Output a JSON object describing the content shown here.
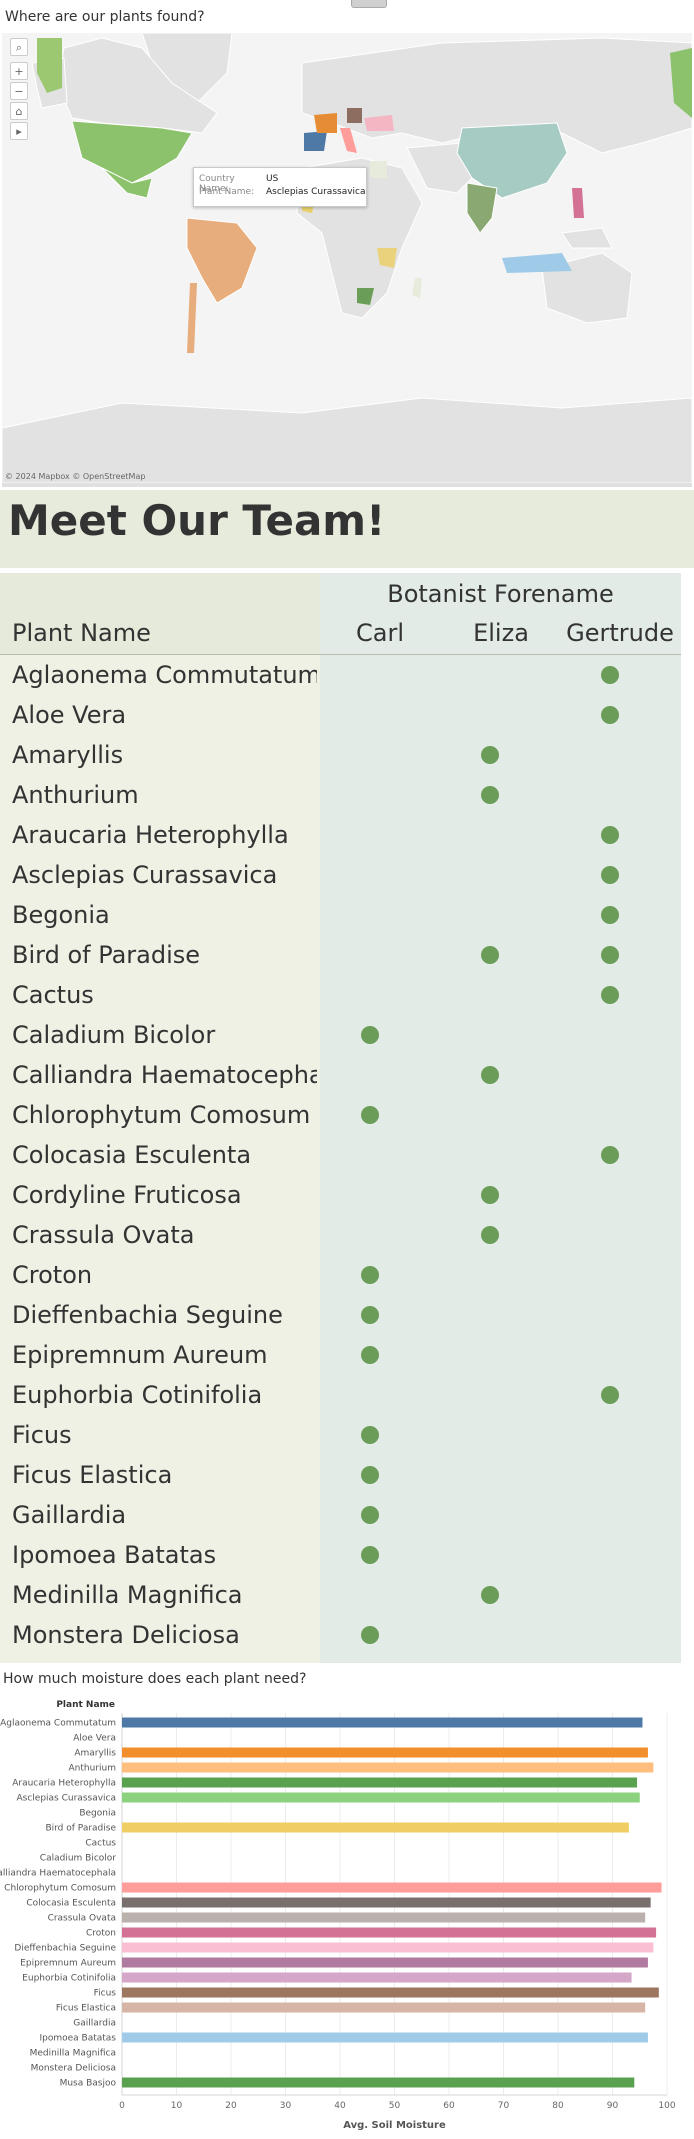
{
  "map_section": {
    "title": "Where are our plants found?",
    "credit": "© 2024 Mapbox  © OpenStreetMap",
    "tooltip": {
      "country_key": "Country Name:",
      "country_value": "US",
      "plant_key": "Plant Name:",
      "plant_value": "Asclepias Curassavica"
    },
    "tools": [
      "search-icon",
      "zoom-in-icon",
      "zoom-out-icon",
      "home-icon",
      "expand-icon"
    ],
    "tool_glyphs": {
      "search": "⌕",
      "zoom_in": "+",
      "zoom_out": "−",
      "home": "⌂",
      "expand": "▸"
    }
  },
  "team": {
    "title": "Meet Our Team!",
    "header": "Botanist Forename",
    "row_header": "Plant Name",
    "columns": [
      "Carl",
      "Eliza",
      "Gertrude"
    ],
    "rows": [
      {
        "name": "Aglaonema Commutatum",
        "marks": [
          false,
          false,
          true
        ]
      },
      {
        "name": "Aloe Vera",
        "marks": [
          false,
          false,
          true
        ]
      },
      {
        "name": "Amaryllis",
        "marks": [
          false,
          true,
          false
        ]
      },
      {
        "name": "Anthurium",
        "marks": [
          false,
          true,
          false
        ]
      },
      {
        "name": "Araucaria Heterophylla",
        "marks": [
          false,
          false,
          true
        ]
      },
      {
        "name": "Asclepias Curassavica",
        "marks": [
          false,
          false,
          true
        ]
      },
      {
        "name": "Begonia",
        "marks": [
          false,
          false,
          true
        ]
      },
      {
        "name": "Bird of Paradise",
        "marks": [
          false,
          true,
          true
        ]
      },
      {
        "name": "Cactus",
        "marks": [
          false,
          false,
          true
        ]
      },
      {
        "name": "Caladium Bicolor",
        "marks": [
          true,
          false,
          false
        ]
      },
      {
        "name": "Calliandra Haematocepha..",
        "marks": [
          false,
          true,
          false
        ]
      },
      {
        "name": "Chlorophytum Comosum",
        "marks": [
          true,
          false,
          false
        ]
      },
      {
        "name": "Colocasia Esculenta",
        "marks": [
          false,
          false,
          true
        ]
      },
      {
        "name": "Cordyline Fruticosa",
        "marks": [
          false,
          true,
          false
        ]
      },
      {
        "name": "Crassula Ovata",
        "marks": [
          false,
          true,
          false
        ]
      },
      {
        "name": "Croton",
        "marks": [
          true,
          false,
          false
        ]
      },
      {
        "name": "Dieffenbachia Seguine",
        "marks": [
          true,
          false,
          false
        ]
      },
      {
        "name": "Epipremnum Aureum",
        "marks": [
          true,
          false,
          false
        ]
      },
      {
        "name": "Euphorbia Cotinifolia",
        "marks": [
          false,
          false,
          true
        ]
      },
      {
        "name": "Ficus",
        "marks": [
          true,
          false,
          false
        ]
      },
      {
        "name": "Ficus Elastica",
        "marks": [
          true,
          false,
          false
        ]
      },
      {
        "name": "Gaillardia",
        "marks": [
          true,
          false,
          false
        ]
      },
      {
        "name": "Ipomoea Batatas",
        "marks": [
          true,
          false,
          false
        ]
      },
      {
        "name": "Medinilla Magnifica",
        "marks": [
          false,
          true,
          false
        ]
      },
      {
        "name": "Monstera Deliciosa",
        "marks": [
          true,
          false,
          false
        ]
      }
    ]
  },
  "moisture": {
    "title": "How much moisture does each plant need?"
  },
  "chart_data": {
    "type": "bar",
    "orientation": "horizontal",
    "title": "",
    "category_header": "Plant Name",
    "xlabel": "Avg. Soil Moisture",
    "ylabel": "",
    "xlim": [
      0,
      100
    ],
    "xticks": [
      0,
      10,
      20,
      30,
      40,
      50,
      60,
      70,
      80,
      90,
      100
    ],
    "grid": true,
    "categories": [
      "Aglaonema Commutatum",
      "Aloe Vera",
      "Amaryllis",
      "Anthurium",
      "Araucaria Heterophylla",
      "Asclepias Curassavica",
      "Begonia",
      "Bird of Paradise",
      "Cactus",
      "Caladium Bicolor",
      "Calliandra Haematocephala",
      "Chlorophytum Comosum",
      "Colocasia Esculenta",
      "Crassula Ovata",
      "Croton",
      "Dieffenbachia Seguine",
      "Epipremnum Aureum",
      "Euphorbia Cotinifolia",
      "Ficus",
      "Ficus Elastica",
      "Gaillardia",
      "Ipomoea Batatas",
      "Medinilla Magnifica",
      "Monstera Deliciosa",
      "Musa Basjoo"
    ],
    "values": [
      95.5,
      null,
      96.5,
      97.5,
      94.5,
      95,
      null,
      93,
      null,
      null,
      null,
      99,
      97,
      96,
      98,
      97.5,
      96.5,
      93.5,
      98.5,
      96,
      null,
      96.5,
      null,
      null,
      94
    ],
    "colors": [
      "#4e79a7",
      null,
      "#f28e2b",
      "#ffbe7d",
      "#59a14f",
      "#8cd17d",
      null,
      "#f1ce63",
      null,
      null,
      null,
      "#ff9d9a",
      "#79706e",
      "#bab0ac",
      "#d37295",
      "#fabfd2",
      "#b07aa1",
      "#d4a6c8",
      "#9d7660",
      "#d7b5a6",
      null,
      "#a0cbe8",
      null,
      null,
      "#59a14f"
    ]
  }
}
